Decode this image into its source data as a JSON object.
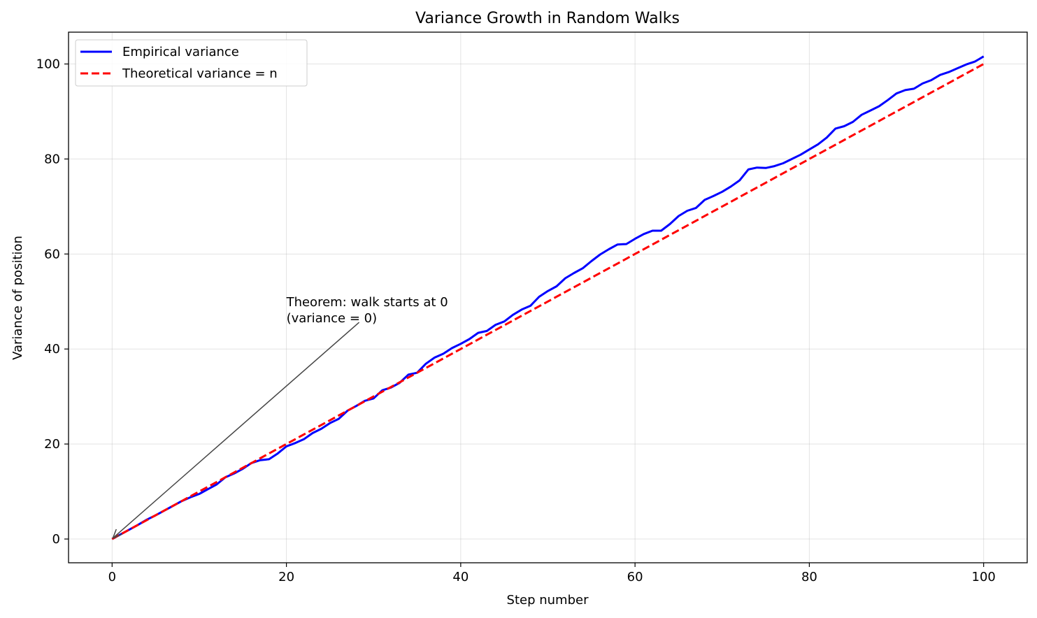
{
  "chart_data": {
    "type": "line",
    "title": "Variance Growth in Random Walks",
    "xlabel": "Step number",
    "ylabel": "Variance of position",
    "xlim": [
      -5,
      105
    ],
    "ylim": [
      -5,
      106.7
    ],
    "xticks": [
      0,
      20,
      40,
      60,
      80,
      100
    ],
    "yticks": [
      0,
      20,
      40,
      60,
      80,
      100
    ],
    "grid": true,
    "legend_position": "upper-left",
    "series": [
      {
        "name": "Empirical variance",
        "color": "#0000ff",
        "style": "solid",
        "x": [
          0,
          1,
          2,
          3,
          4,
          5,
          6,
          7,
          8,
          9,
          10,
          11,
          12,
          13,
          14,
          15,
          16,
          17,
          18,
          19,
          20,
          21,
          22,
          23,
          24,
          25,
          26,
          27,
          28,
          29,
          30,
          31,
          32,
          33,
          34,
          35,
          36,
          37,
          38,
          39,
          40,
          41,
          42,
          43,
          44,
          45,
          46,
          47,
          48,
          49,
          50,
          51,
          52,
          53,
          54,
          55,
          56,
          57,
          58,
          59,
          60,
          61,
          62,
          63,
          64,
          65,
          66,
          67,
          68,
          69,
          70,
          71,
          72,
          73,
          74,
          75,
          76,
          77,
          78,
          79,
          80,
          81,
          82,
          83,
          84,
          85,
          86,
          87,
          88,
          89,
          90,
          91,
          92,
          93,
          94,
          95,
          96,
          97,
          98,
          99,
          100
        ],
        "y": [
          0,
          1.0,
          2.0,
          3.0,
          4.1,
          5.0,
          6.0,
          7.0,
          8.0,
          8.8,
          9.5,
          10.5,
          11.5,
          13.0,
          13.8,
          14.8,
          16.0,
          16.6,
          16.8,
          18.0,
          19.5,
          20.2,
          21.0,
          22.3,
          23.2,
          24.4,
          25.3,
          27.0,
          28.0,
          29.1,
          29.6,
          31.3,
          31.9,
          32.9,
          34.6,
          35.0,
          36.9,
          38.2,
          39.0,
          40.2,
          41.1,
          42.1,
          43.4,
          43.8,
          45.1,
          45.8,
          47.2,
          48.3,
          49.1,
          51.0,
          52.2,
          53.2,
          54.9,
          56.0,
          57.0,
          58.5,
          59.9,
          61.0,
          62.0,
          62.1,
          63.2,
          64.2,
          64.9,
          64.9,
          66.3,
          68.0,
          69.1,
          69.7,
          71.4,
          72.2,
          73.1,
          74.2,
          75.5,
          77.8,
          78.2,
          78.1,
          78.5,
          79.1,
          80.0,
          80.9,
          82.0,
          83.1,
          84.5,
          86.4,
          86.9,
          87.8,
          89.3,
          90.2,
          91.1,
          92.4,
          93.8,
          94.5,
          94.8,
          95.9,
          96.6,
          97.7,
          98.3,
          99.1,
          99.9,
          100.5,
          101.6
        ]
      },
      {
        "name": "Theoretical variance = n",
        "color": "#ff0000",
        "style": "dashed",
        "x": [
          0,
          100
        ],
        "y": [
          0,
          100
        ]
      }
    ],
    "annotation": {
      "text_lines": [
        "Theorem: walk starts at 0",
        "(variance = 0)"
      ],
      "point": [
        0,
        0
      ],
      "text_at": [
        20,
        51.5
      ]
    }
  }
}
